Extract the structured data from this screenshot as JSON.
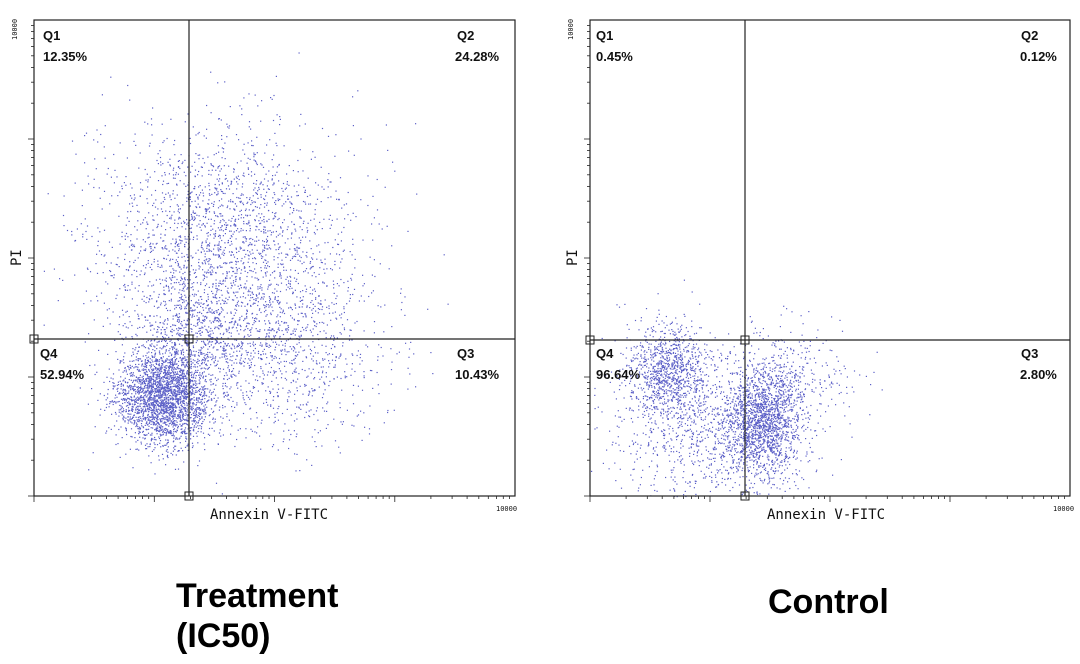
{
  "chart_data": [
    {
      "type": "scatter",
      "caption_lines": [
        "Treatment",
        "(IC50)"
      ],
      "xlabel": "Annexin V-FITC",
      "ylabel": "PI",
      "x_max_tick": "10000",
      "y_max_tick": "10000",
      "scale": "log",
      "point_color": "#5b5fc7",
      "quadrants": [
        {
          "id": "Q1",
          "percent": "12.35%"
        },
        {
          "id": "Q2",
          "percent": "24.28%"
        },
        {
          "id": "Q4",
          "percent": "52.94%"
        },
        {
          "id": "Q3",
          "percent": "10.43%"
        }
      ],
      "clusters": [
        {
          "cx": 0.27,
          "cy": 0.21,
          "sx": 0.05,
          "sy": 0.05,
          "n": 2600
        },
        {
          "cx": 0.39,
          "cy": 0.53,
          "sx": 0.14,
          "sy": 0.12,
          "n": 2200
        },
        {
          "cx": 0.5,
          "cy": 0.3,
          "sx": 0.11,
          "sy": 0.09,
          "n": 900
        },
        {
          "cx": 0.33,
          "cy": 0.34,
          "sx": 0.06,
          "sy": 0.06,
          "n": 500
        }
      ]
    },
    {
      "type": "scatter",
      "caption_lines": [
        "Control"
      ],
      "xlabel": "Annexin V-FITC",
      "ylabel": "PI",
      "x_max_tick": "10000",
      "y_max_tick": "10000",
      "scale": "log",
      "point_color": "#5b5fc7",
      "quadrants": [
        {
          "id": "Q1",
          "percent": "0.45%"
        },
        {
          "id": "Q2",
          "percent": "0.12%"
        },
        {
          "id": "Q4",
          "percent": "96.64%"
        },
        {
          "id": "Q3",
          "percent": "2.80%"
        }
      ],
      "clusters": [
        {
          "cx": 0.16,
          "cy": 0.26,
          "sx": 0.04,
          "sy": 0.05,
          "n": 900
        },
        {
          "cx": 0.36,
          "cy": 0.16,
          "sx": 0.045,
          "sy": 0.06,
          "n": 1800
        },
        {
          "cx": 0.22,
          "cy": 0.15,
          "sx": 0.09,
          "sy": 0.09,
          "n": 900
        },
        {
          "cx": 0.44,
          "cy": 0.26,
          "sx": 0.06,
          "sy": 0.05,
          "n": 200
        }
      ]
    }
  ]
}
